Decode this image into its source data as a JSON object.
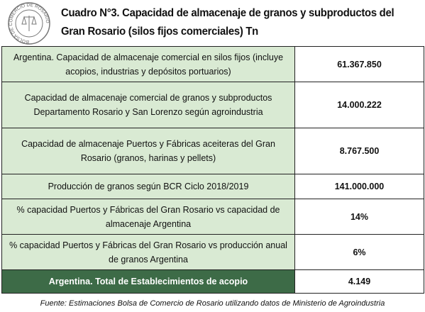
{
  "header": {
    "logo": "BOLSA DE COMERCIO DE ROSARIO",
    "title_line1": "Cuadro N°3. Capacidad de almacenaje de granos y subproductos del",
    "title_line2": "Gran Rosario (silos fijos comerciales) Tn"
  },
  "table": {
    "rows": [
      [
        "Argentina. Capacidad de almacenaje comercial en silos fijos (incluye acopios, industrias y depósitos portuarios)",
        "61.367.850"
      ],
      [
        "Capacidad de almacenaje comercial de granos y subproductos Departamento Rosario y San Lorenzo según agroindustria",
        "14.000.222"
      ],
      [
        "Capacidad de almacenaje Puertos y Fábricas aceiteras del Gran Rosario (granos, harinas y pellets)",
        "8.767.500"
      ],
      [
        "Producción de granos según BCR Ciclo 2018/2019",
        "141.000.000"
      ],
      [
        "% capacidad Puertos y Fábricas del Gran Rosario vs capacidad de almacenaje Argentina",
        "14%"
      ],
      [
        "% capacidad Puertos y Fábricas del Gran Rosario vs producción anual de granos Argentina",
        "6%"
      ],
      [
        "Argentina. Total de Establecimientos de acopio",
        "4.149"
      ]
    ]
  },
  "footer": "Fuente: Estimaciones Bolsa de Comercio de Rosario utilizando datos de Ministerio de Agroindustria"
}
